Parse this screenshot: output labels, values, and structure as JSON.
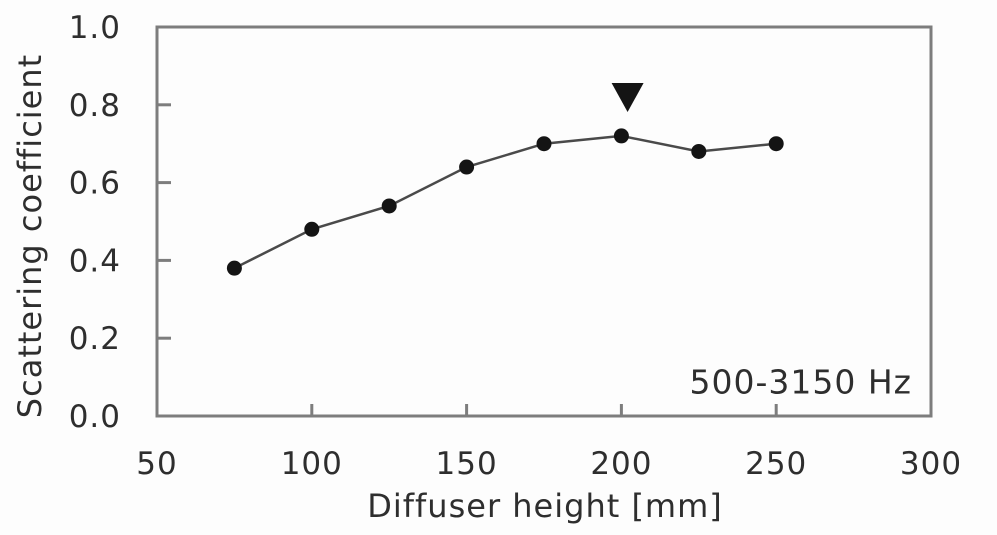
{
  "chart_data": {
    "type": "line",
    "title": "",
    "xlabel": "Diffuser height [mm]",
    "ylabel": "Scattering coefficient",
    "annotation": "500-3150 Hz",
    "series": [
      {
        "name": "scattering-coefficient-500-3150Hz",
        "x": [
          75,
          100,
          125,
          150,
          175,
          200,
          225,
          250
        ],
        "values": [
          0.38,
          0.48,
          0.54,
          0.64,
          0.7,
          0.72,
          0.68,
          0.7
        ],
        "marker": "filled-circle"
      }
    ],
    "annotation_marker": {
      "shape": "triangle-down",
      "x": 202,
      "y": 0.82
    },
    "xlim": [
      50,
      300
    ],
    "ylim": [
      0.0,
      1.0
    ],
    "x_ticks": [
      50,
      100,
      150,
      200,
      250,
      300
    ],
    "y_ticks": [
      "0.0",
      "0.2",
      "0.4",
      "0.6",
      "0.8",
      "1.0"
    ],
    "grid": false,
    "legend_position": "none",
    "colors": {
      "line": "#4a4a4a",
      "marker": "#141414",
      "axis": "#7d7d7d",
      "text": "#2e2e2e",
      "background": "#fdfdfd"
    }
  }
}
